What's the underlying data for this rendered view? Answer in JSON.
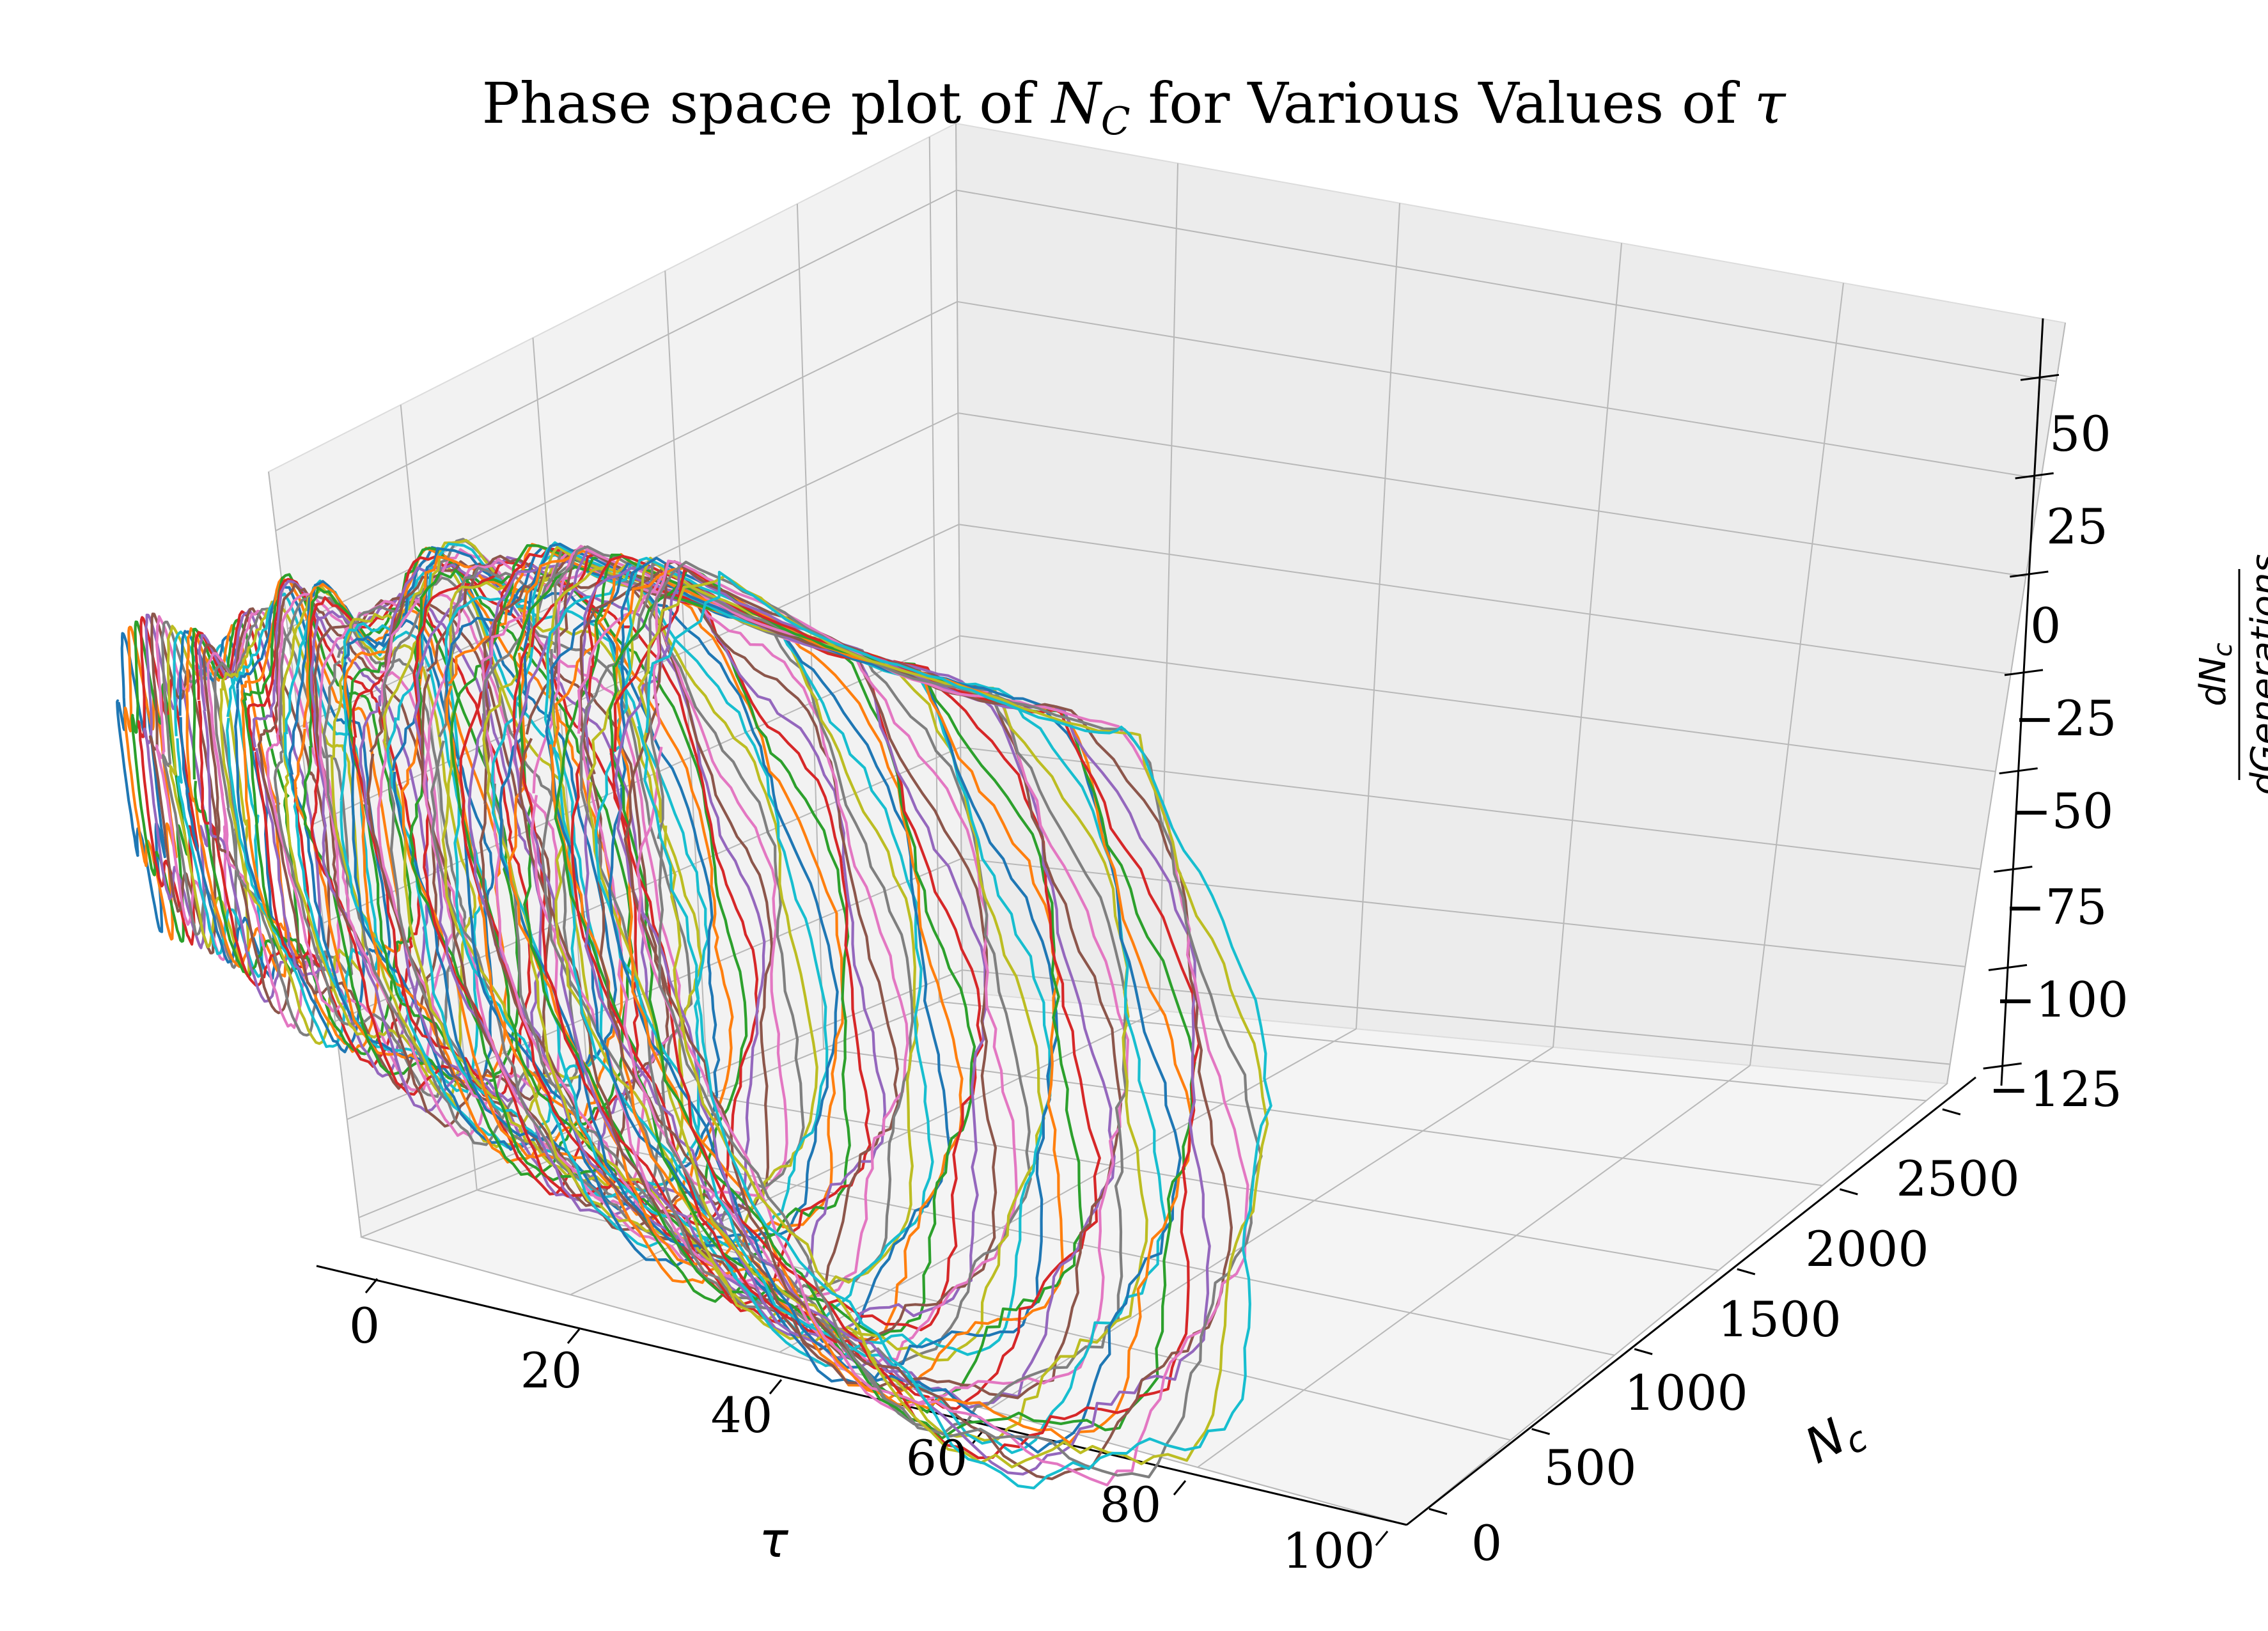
{
  "chart_data": {
    "type": "line",
    "projection": "3d",
    "title": {
      "prefix": "Phase space plot of ",
      "n_symbol": "N",
      "n_sub": "C",
      "middle": " for Various Values of ",
      "tau_symbol": "τ"
    },
    "xlabel": "τ",
    "ylabel": {
      "main": "N",
      "sub": "c"
    },
    "zlabel": {
      "num_main": "dN",
      "num_sub": "c",
      "den": "dGenerations"
    },
    "x_ticks": [
      "0",
      "20",
      "40",
      "60",
      "80",
      "100"
    ],
    "y_ticks": [
      "0",
      "500",
      "1000",
      "1500",
      "2000",
      "2500"
    ],
    "z_ticks": [
      "50",
      "25",
      "0",
      "−25",
      "−50",
      "−75",
      "−100",
      "−125"
    ],
    "xlim": [
      0,
      100
    ],
    "ylim": [
      0,
      2600
    ],
    "zlim": [
      -130,
      65
    ],
    "grid": true,
    "legend": "none",
    "tau_values": [
      1,
      100,
      1
    ],
    "note": "one closed phase-space loop (Nc vs dNc/dGenerations) per tau value; loop amplitude grows with tau",
    "series_colors": [
      "#1f77b4",
      "#ff7f0e",
      "#2ca02c",
      "#d62728",
      "#9467bd",
      "#8c564b",
      "#e377c2",
      "#7f7f7f",
      "#bcbd22",
      "#17becf"
    ]
  }
}
